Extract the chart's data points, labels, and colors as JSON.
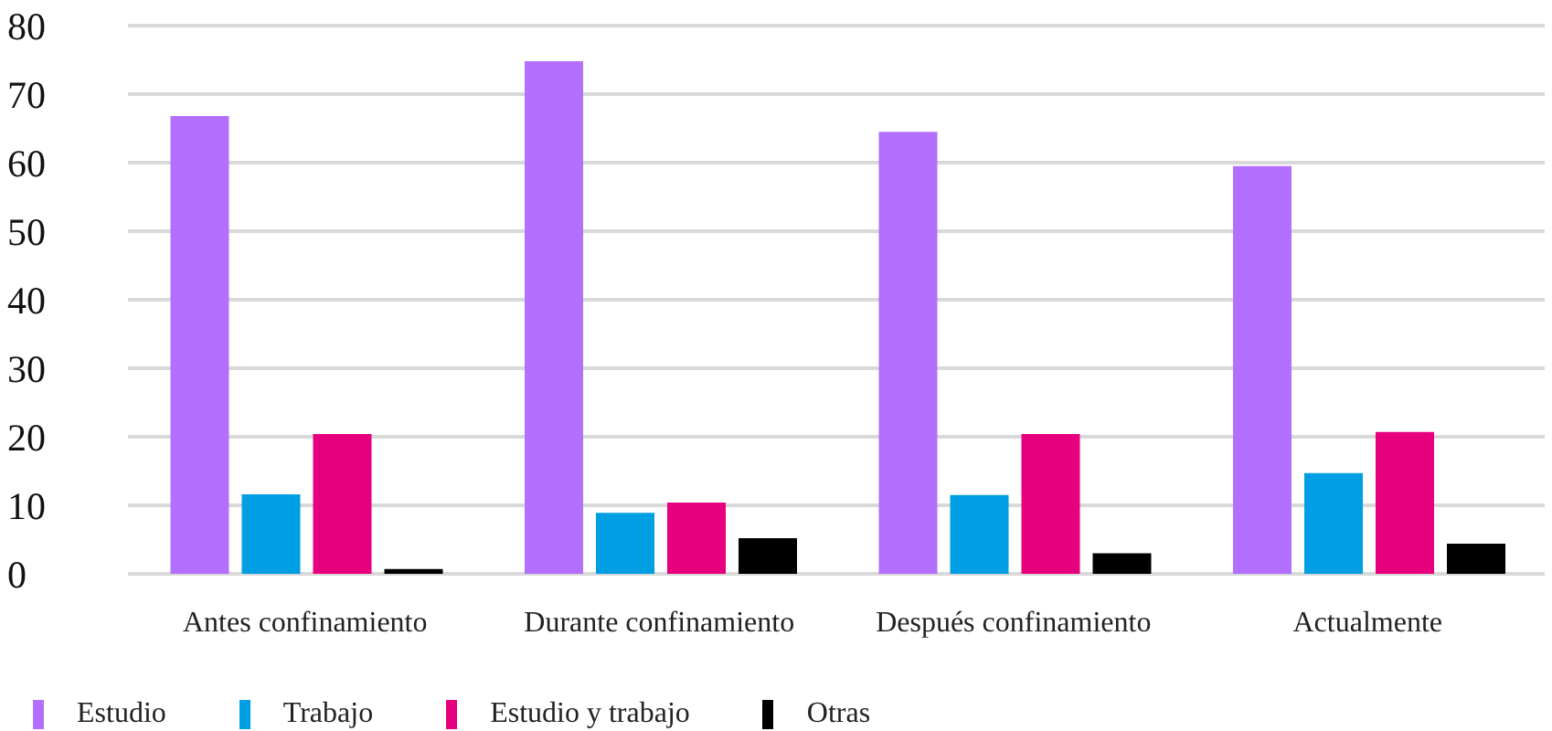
{
  "chart_data": {
    "type": "bar",
    "categories": [
      "Antes confinamiento",
      "Durante confinamiento",
      "Después confinamiento",
      "Actualmente"
    ],
    "series": [
      {
        "name": "Estudio",
        "color": "#b36ffd",
        "values": [
          66.8,
          74.8,
          64.5,
          59.5
        ]
      },
      {
        "name": "Trabajo",
        "color": "#009fe3",
        "values": [
          11.6,
          8.9,
          11.5,
          14.7
        ]
      },
      {
        "name": "Estudio y trabajo",
        "color": "#e6007e",
        "values": [
          20.4,
          10.4,
          20.4,
          20.7
        ]
      },
      {
        "name": "Otras",
        "color": "#000000",
        "values": [
          0.7,
          5.2,
          3.0,
          4.4
        ]
      }
    ],
    "ylim": [
      0,
      80
    ],
    "yticks": [
      0,
      10,
      20,
      30,
      40,
      50,
      60,
      70,
      80
    ],
    "grid": "y",
    "legend": "bottom left"
  }
}
